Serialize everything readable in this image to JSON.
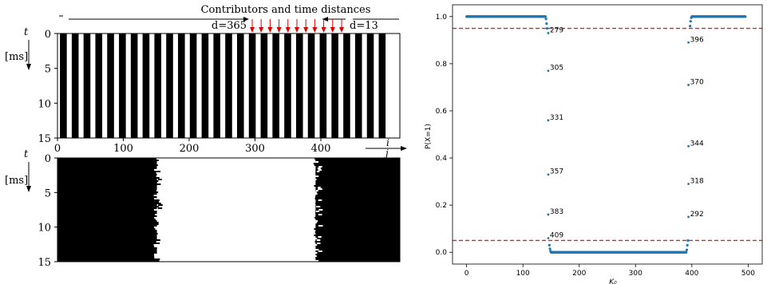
{
  "left_figure": {
    "annotation": {
      "title": "Contributors and time distances",
      "d_left": "d=365",
      "d_right": "d=13"
    },
    "top_panel": {
      "y_axis": {
        "letter": "t",
        "unit": "[ms]",
        "ticks": [
          "0",
          "5",
          "10",
          "15"
        ]
      },
      "x_axis": {
        "ticks": [
          "0",
          "100",
          "200",
          "300",
          "400"
        ],
        "index_label_top": "i",
        "index_label_bottom": "j"
      },
      "stripe_count": 28
    },
    "bottom_panel": {
      "y_axis": {
        "letter": "t",
        "unit": "[ms]",
        "ticks": [
          "0",
          "5",
          "10",
          "15"
        ]
      },
      "white_region": {
        "start": 151,
        "end": 392
      }
    }
  },
  "chart_data": {
    "type": "scatter",
    "title": "",
    "xlabel": "K₀",
    "ylabel": "P(X=1)",
    "xlim": [
      -25,
      525
    ],
    "ylim": [
      -0.05,
      1.05
    ],
    "x_ticks": [
      "0",
      "100",
      "200",
      "300",
      "400",
      "500"
    ],
    "y_ticks": [
      "0.0",
      "0.2",
      "0.4",
      "0.6",
      "0.8",
      "1.0"
    ],
    "threshold_lines": [
      0.05,
      0.95
    ],
    "threshold_color": "#d62728",
    "point_color": "#1f77b4",
    "grid": false,
    "high_plateau_left": {
      "x_start": 0,
      "x_end": 140,
      "y": 1.0
    },
    "low_plateau": {
      "x_start": 150,
      "x_end": 390,
      "y": 0.0
    },
    "high_plateau_right": {
      "x_start": 400,
      "x_end": 495,
      "y": 1.0
    },
    "labeled_points": [
      {
        "label": "279",
        "x": 145,
        "y": 0.93
      },
      {
        "label": "305",
        "x": 145,
        "y": 0.77
      },
      {
        "label": "331",
        "x": 145,
        "y": 0.56
      },
      {
        "label": "357",
        "x": 145,
        "y": 0.33
      },
      {
        "label": "383",
        "x": 145,
        "y": 0.16
      },
      {
        "label": "409",
        "x": 145,
        "y": 0.06
      },
      {
        "label": "396",
        "x": 394,
        "y": 0.89
      },
      {
        "label": "370",
        "x": 394,
        "y": 0.71
      },
      {
        "label": "344",
        "x": 394,
        "y": 0.45
      },
      {
        "label": "318",
        "x": 394,
        "y": 0.29
      },
      {
        "label": "292",
        "x": 394,
        "y": 0.15
      }
    ]
  }
}
